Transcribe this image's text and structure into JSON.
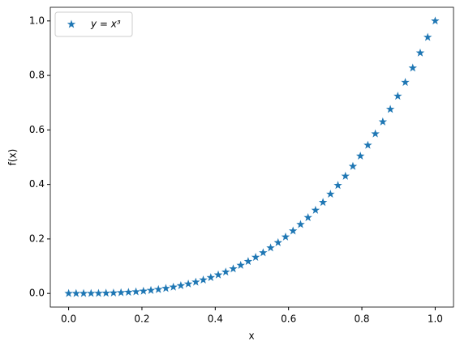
{
  "chart_data": {
    "type": "scatter",
    "xlabel": "x",
    "ylabel": "f(x)",
    "x": [
      0,
      0.0204,
      0.0408,
      0.0612,
      0.0816,
      0.102,
      0.1224,
      0.1429,
      0.1633,
      0.1837,
      0.2041,
      0.2245,
      0.2449,
      0.2653,
      0.2857,
      0.3061,
      0.3265,
      0.3469,
      0.3673,
      0.3878,
      0.4082,
      0.4286,
      0.449,
      0.4694,
      0.4898,
      0.5102,
      0.5306,
      0.551,
      0.5714,
      0.5918,
      0.6122,
      0.6327,
      0.6531,
      0.6735,
      0.6939,
      0.7143,
      0.7347,
      0.7551,
      0.7755,
      0.7959,
      0.8163,
      0.8367,
      0.8571,
      0.8776,
      0.898,
      0.9184,
      0.9388,
      0.9592,
      0.9796,
      1
    ],
    "series": [
      {
        "name": "y = x³",
        "color": "#1f77b4",
        "marker": "star",
        "values": [
          0,
          0,
          0.0001,
          0.0002,
          0.0005,
          0.0011,
          0.0018,
          0.0029,
          0.0044,
          0.0062,
          0.0085,
          0.0113,
          0.0147,
          0.0187,
          0.0233,
          0.0287,
          0.0348,
          0.0418,
          0.0496,
          0.0583,
          0.068,
          0.0787,
          0.0905,
          0.1034,
          0.1175,
          0.1328,
          0.1494,
          0.1673,
          0.1866,
          0.2073,
          0.2295,
          0.2532,
          0.2785,
          0.3055,
          0.3341,
          0.3644,
          0.3966,
          0.4305,
          0.4664,
          0.5042,
          0.544,
          0.5858,
          0.6297,
          0.6758,
          0.7241,
          0.7746,
          0.8273,
          0.8825,
          0.94,
          1
        ]
      }
    ],
    "xlim": [
      -0.05,
      1.05
    ],
    "ylim": [
      -0.05,
      1.05
    ],
    "xticks": [
      {
        "value": 0,
        "label": "0.0"
      },
      {
        "value": 0.2,
        "label": "0.2"
      },
      {
        "value": 0.4,
        "label": "0.4"
      },
      {
        "value": 0.6,
        "label": "0.6"
      },
      {
        "value": 0.8,
        "label": "0.8"
      },
      {
        "value": 1,
        "label": "1.0"
      }
    ],
    "yticks": [
      {
        "value": 0,
        "label": "0.0"
      },
      {
        "value": 0.2,
        "label": "0.2"
      },
      {
        "value": 0.4,
        "label": "0.4"
      },
      {
        "value": 0.6,
        "label": "0.6"
      },
      {
        "value": 0.8,
        "label": "0.8"
      },
      {
        "value": 1,
        "label": "1.0"
      }
    ],
    "grid": false,
    "legend": "upper-left"
  }
}
